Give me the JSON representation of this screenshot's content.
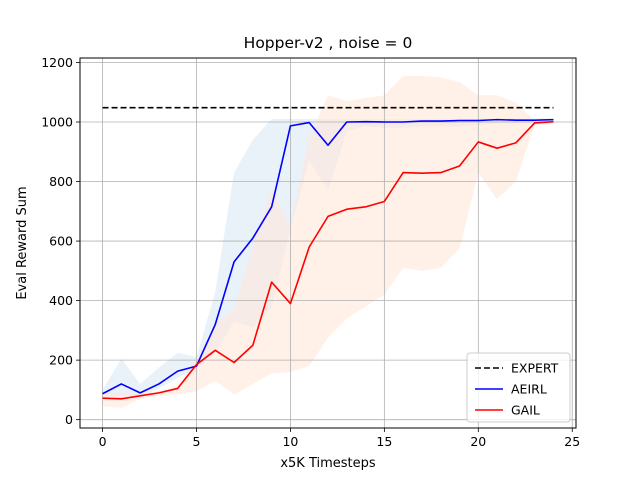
{
  "chart_data": {
    "type": "line",
    "title": "Hopper-v2 , noise = 0",
    "xlabel": "x5K Timesteps",
    "ylabel": "Eval Reward Sum",
    "xlim": [
      -1.2,
      25.2
    ],
    "ylim": [
      -28,
      1215
    ],
    "xticks": [
      0,
      5,
      10,
      15,
      20,
      25
    ],
    "yticks": [
      0,
      200,
      400,
      600,
      800,
      1000,
      1200
    ],
    "grid": true,
    "legend_position": "lower-right",
    "series": [
      {
        "name": "EXPERT",
        "color": "#000000",
        "style": "dashed",
        "x": [
          0,
          24
        ],
        "values": [
          1048,
          1048
        ]
      },
      {
        "name": "AEIRL",
        "color": "#0000ff",
        "style": "solid",
        "x": [
          0,
          1,
          2,
          3,
          4,
          5,
          6,
          7,
          8,
          9,
          10,
          11,
          12,
          13,
          14,
          15,
          16,
          17,
          18,
          19,
          20,
          21,
          22,
          23,
          24
        ],
        "values": [
          87,
          120,
          90,
          120,
          163,
          180,
          320,
          530,
          610,
          715,
          987,
          998,
          922,
          1000,
          1001,
          1000,
          1000,
          1003,
          1003,
          1005,
          1005,
          1008,
          1006,
          1006,
          1008
        ],
        "band_lower": [
          75,
          80,
          75,
          105,
          140,
          170,
          225,
          330,
          310,
          375,
          640,
          870,
          770,
          970,
          985,
          980,
          980,
          985,
          985,
          985,
          990,
          995,
          995,
          995,
          995
        ],
        "band_upper": [
          100,
          205,
          120,
          175,
          225,
          210,
          430,
          830,
          940,
          1010,
          1010,
          1010,
          1010,
          1010,
          1010,
          1010,
          1010,
          1010,
          1010,
          1010,
          1010,
          1012,
          1012,
          1012,
          1012
        ],
        "band_color": "#dbe7f5"
      },
      {
        "name": "GAIL",
        "color": "#ff0000",
        "style": "solid",
        "x": [
          0,
          1,
          2,
          3,
          4,
          5,
          6,
          7,
          8,
          9,
          10,
          11,
          12,
          13,
          14,
          15,
          16,
          17,
          18,
          19,
          20,
          21,
          22,
          23,
          24
        ],
        "values": [
          72,
          70,
          80,
          90,
          105,
          185,
          233,
          192,
          250,
          462,
          390,
          580,
          683,
          707,
          715,
          733,
          830,
          828,
          830,
          852,
          933,
          912,
          930,
          997,
          1001
        ],
        "band_lower": [
          45,
          40,
          70,
          80,
          85,
          95,
          130,
          85,
          120,
          155,
          160,
          180,
          275,
          340,
          380,
          420,
          510,
          500,
          510,
          575,
          830,
          740,
          800,
          990,
          995
        ],
        "band_upper": [
          90,
          90,
          90,
          95,
          115,
          200,
          320,
          370,
          580,
          780,
          640,
          950,
          1090,
          1070,
          1080,
          1090,
          1155,
          1155,
          1150,
          1135,
          1090,
          1090,
          1065,
          1005,
          1008
        ],
        "band_color": "#ffe8d9"
      }
    ]
  }
}
